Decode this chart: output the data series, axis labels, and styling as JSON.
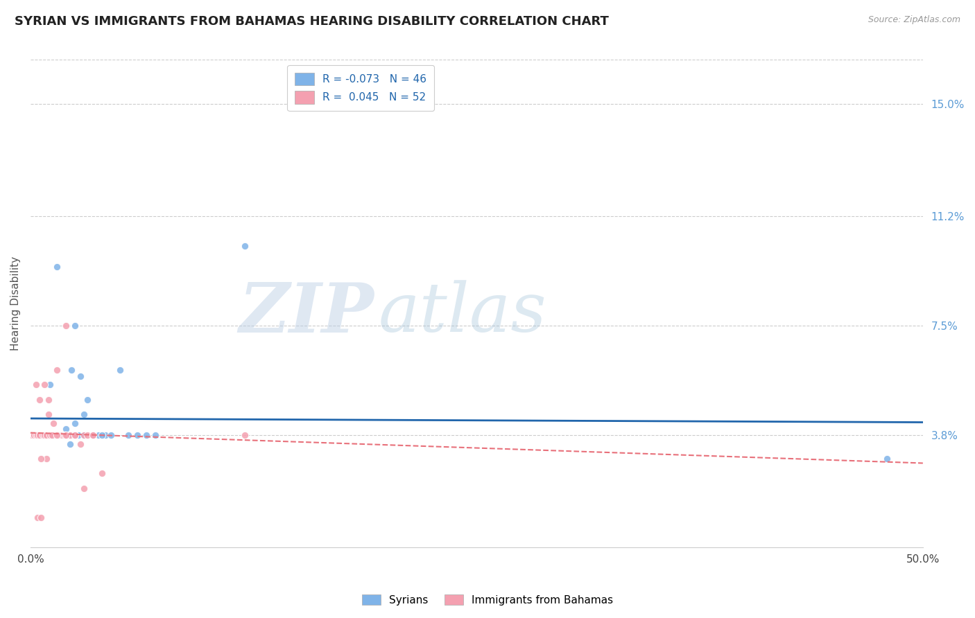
{
  "title": "SYRIAN VS IMMIGRANTS FROM BAHAMAS HEARING DISABILITY CORRELATION CHART",
  "source": "Source: ZipAtlas.com",
  "ylabel": "Hearing Disability",
  "ytick_labels": [
    "3.8%",
    "7.5%",
    "11.2%",
    "15.0%"
  ],
  "ytick_values": [
    0.038,
    0.075,
    0.112,
    0.15
  ],
  "xlim": [
    0.0,
    0.5
  ],
  "ylim": [
    0.0,
    0.165
  ],
  "syrians_R": -0.073,
  "syrians_N": 46,
  "bahamas_R": 0.045,
  "bahamas_N": 52,
  "syrian_color": "#7fb3e8",
  "bahamas_color": "#f4a0b0",
  "syrian_line_color": "#2166ac",
  "bahamas_line_color": "#e8707a",
  "background_color": "#ffffff",
  "grid_color": "#cccccc",
  "watermark_zip": "ZIP",
  "watermark_atlas": "atlas",
  "syrians_x": [
    0.008,
    0.01,
    0.015,
    0.012,
    0.02,
    0.025,
    0.018,
    0.03,
    0.022,
    0.035,
    0.005,
    0.007,
    0.009,
    0.011,
    0.013,
    0.016,
    0.019,
    0.023,
    0.028,
    0.032,
    0.038,
    0.042,
    0.045,
    0.05,
    0.055,
    0.06,
    0.065,
    0.07,
    0.015,
    0.025,
    0.003,
    0.004,
    0.006,
    0.008,
    0.01,
    0.012,
    0.015,
    0.018,
    0.021,
    0.024,
    0.027,
    0.03,
    0.12,
    0.48,
    0.035,
    0.04
  ],
  "syrians_y": [
    0.038,
    0.038,
    0.038,
    0.038,
    0.04,
    0.042,
    0.038,
    0.045,
    0.035,
    0.038,
    0.038,
    0.038,
    0.038,
    0.055,
    0.038,
    0.038,
    0.038,
    0.06,
    0.058,
    0.05,
    0.038,
    0.038,
    0.038,
    0.06,
    0.038,
    0.038,
    0.038,
    0.038,
    0.095,
    0.075,
    0.038,
    0.038,
    0.038,
    0.038,
    0.038,
    0.038,
    0.038,
    0.038,
    0.038,
    0.038,
    0.038,
    0.038,
    0.102,
    0.03,
    0.038,
    0.038
  ],
  "bahamas_x": [
    0.002,
    0.003,
    0.004,
    0.005,
    0.006,
    0.007,
    0.008,
    0.009,
    0.01,
    0.011,
    0.012,
    0.013,
    0.014,
    0.015,
    0.016,
    0.017,
    0.018,
    0.019,
    0.02,
    0.022,
    0.025,
    0.028,
    0.03,
    0.032,
    0.035,
    0.003,
    0.005,
    0.008,
    0.01,
    0.015,
    0.001,
    0.002,
    0.003,
    0.004,
    0.005,
    0.006,
    0.007,
    0.008,
    0.009,
    0.01,
    0.011,
    0.012,
    0.015,
    0.02,
    0.025,
    0.03,
    0.035,
    0.04,
    0.12,
    0.02,
    0.004,
    0.006
  ],
  "bahamas_y": [
    0.038,
    0.038,
    0.038,
    0.038,
    0.038,
    0.038,
    0.038,
    0.03,
    0.038,
    0.038,
    0.038,
    0.042,
    0.038,
    0.038,
    0.038,
    0.038,
    0.038,
    0.038,
    0.038,
    0.038,
    0.038,
    0.035,
    0.038,
    0.038,
    0.038,
    0.055,
    0.05,
    0.055,
    0.05,
    0.06,
    0.038,
    0.038,
    0.038,
    0.038,
    0.038,
    0.03,
    0.038,
    0.038,
    0.038,
    0.045,
    0.038,
    0.038,
    0.038,
    0.038,
    0.038,
    0.02,
    0.038,
    0.025,
    0.038,
    0.075,
    0.01,
    0.01
  ]
}
